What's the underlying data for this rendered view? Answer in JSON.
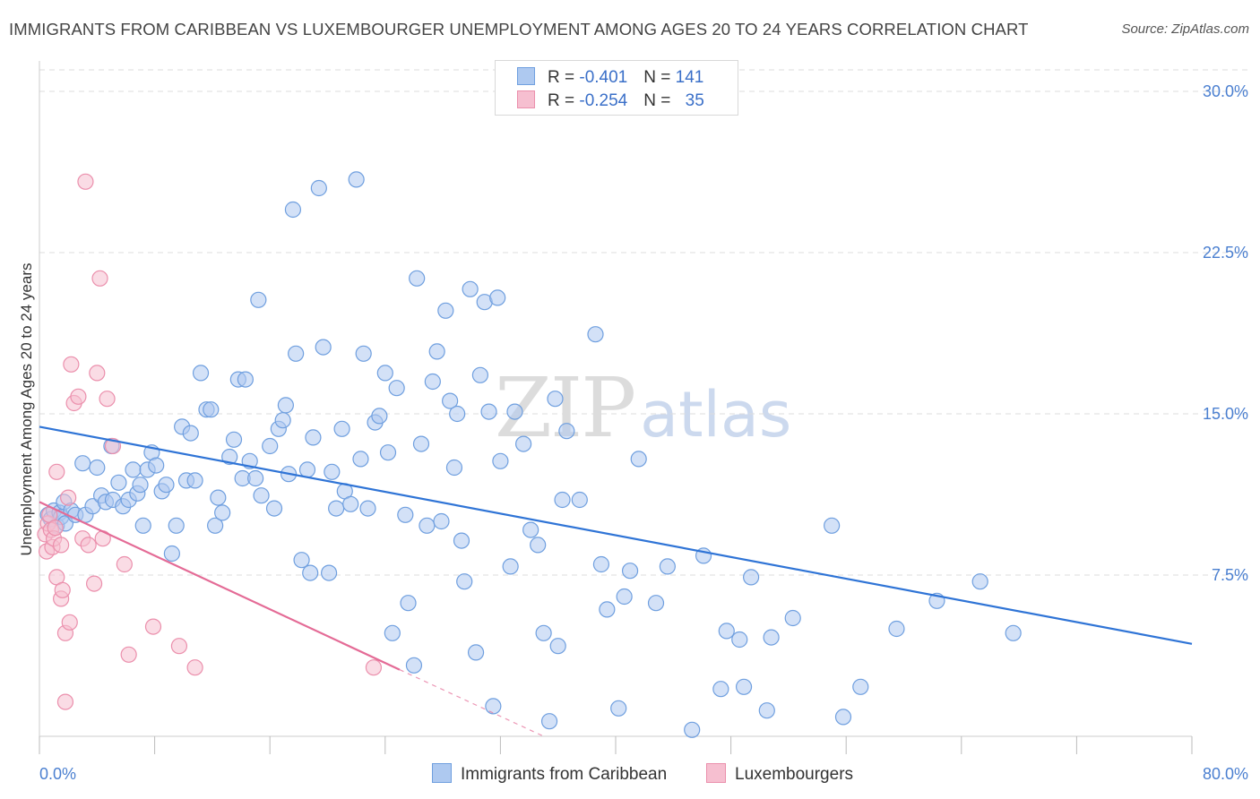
{
  "header": {
    "title": "IMMIGRANTS FROM CARIBBEAN VS LUXEMBOURGER UNEMPLOYMENT AMONG AGES 20 TO 24 YEARS CORRELATION CHART",
    "source": "Source: ZipAtlas.com"
  },
  "watermark": {
    "zip": "ZIP",
    "atlas": "atlas"
  },
  "legend": {
    "rows": [
      {
        "r_label": "R = ",
        "r_value": "-0.401",
        "n_label": "N = ",
        "n_value": "141"
      },
      {
        "r_label": "R = ",
        "r_value": "-0.254",
        "n_label": "N = ",
        "n_value": "35"
      }
    ]
  },
  "bottom_legend": {
    "series1": "Immigrants from Caribbean",
    "series2": "Luxembourgers"
  },
  "colors": {
    "blue_fill": "#aec9f0",
    "blue_stroke": "#6f9fdf",
    "blue_line": "#2f74d6",
    "pink_fill": "#f6bfd0",
    "pink_stroke": "#eb8fac",
    "pink_line": "#e46b96",
    "grid": "#dddddd"
  },
  "chart_data": {
    "type": "scatter",
    "title": "IMMIGRANTS FROM CARIBBEAN VS LUXEMBOURGER UNEMPLOYMENT AMONG AGES 20 TO 24 YEARS CORRELATION CHART",
    "xlabel": "",
    "ylabel": "Unemployment Among Ages 20 to 24 years",
    "xlim": [
      0,
      80
    ],
    "ylim": [
      0,
      30
    ],
    "x_tick_labels": [
      "0.0%",
      "80.0%"
    ],
    "y_tick_labels": [
      "7.5%",
      "15.0%",
      "22.5%",
      "30.0%"
    ],
    "y_ticks": [
      7.5,
      15,
      22.5,
      30
    ],
    "grid": true,
    "legend_position": "top-center",
    "series": [
      {
        "name": "Immigrants from Caribbean",
        "r": -0.401,
        "n": 141,
        "trend": {
          "x": [
            0,
            80
          ],
          "y": [
            14.4,
            4.3
          ]
        },
        "points": [
          [
            0.6,
            10.3
          ],
          [
            0.8,
            10.1
          ],
          [
            1.0,
            10.5
          ],
          [
            1.2,
            9.8
          ],
          [
            1.4,
            10.4
          ],
          [
            1.5,
            10.2
          ],
          [
            1.7,
            10.9
          ],
          [
            1.8,
            9.9
          ],
          [
            2.2,
            10.5
          ],
          [
            2.5,
            10.3
          ],
          [
            3.0,
            12.7
          ],
          [
            3.2,
            10.3
          ],
          [
            3.7,
            10.7
          ],
          [
            4.0,
            12.5
          ],
          [
            4.3,
            11.2
          ],
          [
            4.6,
            10.9
          ],
          [
            5.0,
            13.5
          ],
          [
            5.1,
            11.0
          ],
          [
            5.5,
            11.8
          ],
          [
            5.8,
            10.7
          ],
          [
            6.2,
            11.0
          ],
          [
            6.5,
            12.4
          ],
          [
            6.8,
            11.3
          ],
          [
            7.0,
            11.7
          ],
          [
            7.2,
            9.8
          ],
          [
            7.5,
            12.4
          ],
          [
            7.8,
            13.2
          ],
          [
            8.1,
            12.6
          ],
          [
            8.5,
            11.4
          ],
          [
            8.8,
            11.7
          ],
          [
            9.2,
            8.5
          ],
          [
            9.5,
            9.8
          ],
          [
            9.9,
            14.4
          ],
          [
            10.2,
            11.9
          ],
          [
            10.5,
            14.1
          ],
          [
            10.8,
            11.9
          ],
          [
            11.2,
            16.9
          ],
          [
            11.6,
            15.2
          ],
          [
            11.9,
            15.2
          ],
          [
            12.2,
            9.8
          ],
          [
            12.4,
            11.1
          ],
          [
            12.7,
            10.4
          ],
          [
            13.2,
            13.0
          ],
          [
            13.5,
            13.8
          ],
          [
            13.8,
            16.6
          ],
          [
            14.1,
            12.0
          ],
          [
            14.3,
            16.6
          ],
          [
            14.6,
            12.8
          ],
          [
            15.0,
            12.0
          ],
          [
            15.4,
            11.2
          ],
          [
            15.2,
            20.3
          ],
          [
            16.0,
            13.5
          ],
          [
            16.3,
            10.6
          ],
          [
            16.6,
            14.3
          ],
          [
            16.9,
            14.7
          ],
          [
            17.1,
            15.4
          ],
          [
            17.3,
            12.2
          ],
          [
            17.6,
            24.5
          ],
          [
            17.8,
            17.8
          ],
          [
            18.2,
            8.2
          ],
          [
            18.6,
            12.4
          ],
          [
            18.8,
            7.6
          ],
          [
            19.0,
            13.9
          ],
          [
            19.4,
            25.5
          ],
          [
            19.7,
            18.1
          ],
          [
            20.1,
            7.6
          ],
          [
            20.3,
            12.3
          ],
          [
            20.6,
            10.6
          ],
          [
            21.0,
            14.3
          ],
          [
            21.2,
            11.4
          ],
          [
            21.6,
            10.8
          ],
          [
            22.0,
            25.9
          ],
          [
            22.3,
            12.9
          ],
          [
            22.5,
            17.8
          ],
          [
            22.8,
            10.6
          ],
          [
            23.3,
            14.6
          ],
          [
            23.6,
            14.9
          ],
          [
            24.0,
            16.9
          ],
          [
            24.2,
            13.2
          ],
          [
            24.5,
            4.8
          ],
          [
            24.8,
            16.2
          ],
          [
            25.4,
            10.3
          ],
          [
            25.6,
            6.2
          ],
          [
            26.0,
            3.3
          ],
          [
            26.2,
            21.3
          ],
          [
            26.5,
            13.6
          ],
          [
            26.9,
            9.8
          ],
          [
            27.3,
            16.5
          ],
          [
            27.6,
            17.9
          ],
          [
            27.9,
            10.0
          ],
          [
            28.2,
            19.8
          ],
          [
            28.5,
            15.6
          ],
          [
            28.8,
            12.5
          ],
          [
            29.0,
            15.0
          ],
          [
            29.3,
            9.1
          ],
          [
            29.5,
            7.2
          ],
          [
            29.9,
            20.8
          ],
          [
            30.3,
            3.9
          ],
          [
            30.6,
            16.8
          ],
          [
            30.9,
            20.2
          ],
          [
            31.2,
            15.1
          ],
          [
            31.5,
            1.4
          ],
          [
            31.8,
            20.4
          ],
          [
            32.0,
            12.8
          ],
          [
            32.7,
            7.9
          ],
          [
            33.0,
            15.1
          ],
          [
            33.6,
            13.6
          ],
          [
            34.1,
            9.6
          ],
          [
            34.6,
            8.9
          ],
          [
            35.0,
            4.8
          ],
          [
            35.4,
            0.7
          ],
          [
            35.8,
            15.7
          ],
          [
            36.0,
            4.2
          ],
          [
            36.3,
            11.0
          ],
          [
            36.6,
            14.2
          ],
          [
            37.5,
            11.0
          ],
          [
            38.6,
            18.7
          ],
          [
            39.0,
            8.0
          ],
          [
            39.4,
            5.9
          ],
          [
            40.2,
            1.3
          ],
          [
            40.6,
            6.5
          ],
          [
            41.0,
            7.7
          ],
          [
            41.6,
            12.9
          ],
          [
            42.8,
            6.2
          ],
          [
            43.6,
            7.9
          ],
          [
            45.3,
            0.3
          ],
          [
            46.1,
            8.4
          ],
          [
            47.3,
            2.2
          ],
          [
            47.7,
            4.9
          ],
          [
            48.6,
            4.5
          ],
          [
            48.9,
            2.3
          ],
          [
            49.4,
            7.4
          ],
          [
            50.5,
            1.2
          ],
          [
            50.8,
            4.6
          ],
          [
            52.3,
            5.5
          ],
          [
            55.0,
            9.8
          ],
          [
            55.8,
            0.9
          ],
          [
            57.0,
            2.3
          ],
          [
            59.5,
            5.0
          ],
          [
            62.3,
            6.3
          ],
          [
            65.3,
            7.2
          ],
          [
            67.6,
            4.8
          ]
        ]
      },
      {
        "name": "Luxembourgers",
        "r": -0.254,
        "n": 35,
        "trend": {
          "x": [
            0,
            25
          ],
          "y": [
            10.9,
            3.1
          ]
        },
        "trend_dashed": {
          "x": [
            25,
            35
          ],
          "y": [
            3.1,
            0
          ]
        },
        "points": [
          [
            0.4,
            9.4
          ],
          [
            0.5,
            8.6
          ],
          [
            0.6,
            9.9
          ],
          [
            0.7,
            10.3
          ],
          [
            0.8,
            9.6
          ],
          [
            0.9,
            8.8
          ],
          [
            1.0,
            9.2
          ],
          [
            1.1,
            9.7
          ],
          [
            1.2,
            12.3
          ],
          [
            1.2,
            7.4
          ],
          [
            1.5,
            8.9
          ],
          [
            1.5,
            6.4
          ],
          [
            1.6,
            6.8
          ],
          [
            1.8,
            4.8
          ],
          [
            1.8,
            1.6
          ],
          [
            2.0,
            11.1
          ],
          [
            2.1,
            5.3
          ],
          [
            2.2,
            17.3
          ],
          [
            2.4,
            15.5
          ],
          [
            2.7,
            15.8
          ],
          [
            3.0,
            9.2
          ],
          [
            3.2,
            25.8
          ],
          [
            3.4,
            8.9
          ],
          [
            3.8,
            7.1
          ],
          [
            4.0,
            16.9
          ],
          [
            4.2,
            21.3
          ],
          [
            4.4,
            9.2
          ],
          [
            4.7,
            15.7
          ],
          [
            5.1,
            13.5
          ],
          [
            5.9,
            8.0
          ],
          [
            6.2,
            3.8
          ],
          [
            7.9,
            5.1
          ],
          [
            9.7,
            4.2
          ],
          [
            10.8,
            3.2
          ],
          [
            23.2,
            3.2
          ]
        ]
      }
    ]
  }
}
